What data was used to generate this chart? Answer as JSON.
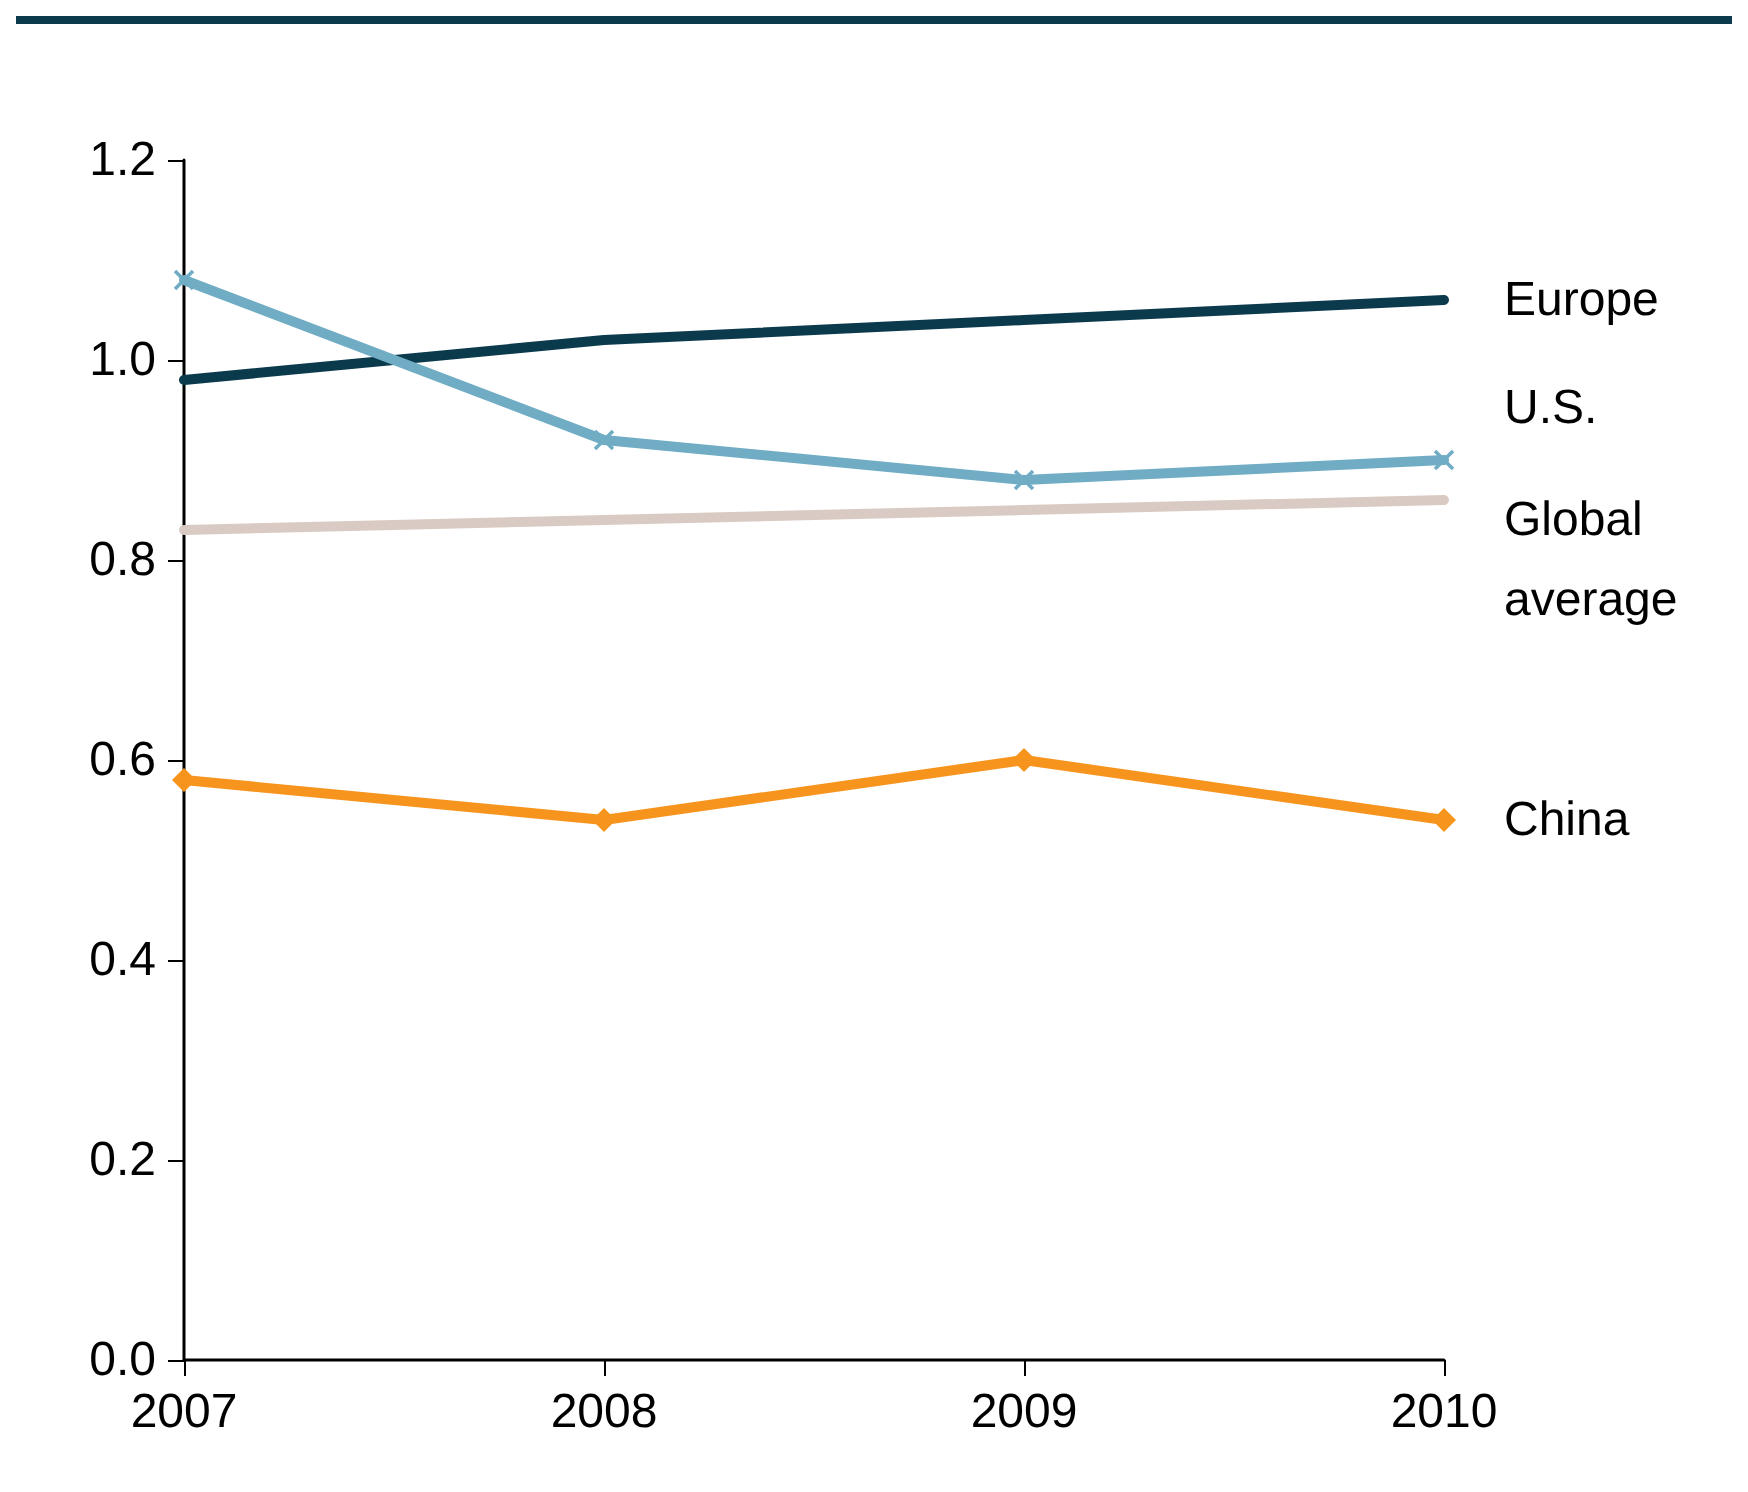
{
  "chart_data": {
    "type": "line",
    "categories": [
      "2007",
      "2008",
      "2009",
      "2010"
    ],
    "series": [
      {
        "name": "Europe",
        "color": "#0b3a4c",
        "values": [
          0.98,
          1.02,
          1.04,
          1.06
        ],
        "marker": "none"
      },
      {
        "name": "U.S.",
        "color": "#70adc4",
        "values": [
          1.08,
          0.92,
          0.88,
          0.9
        ],
        "marker": "cross"
      },
      {
        "name": "Global average",
        "color": "#d9cbc3",
        "values": [
          0.83,
          0.84,
          0.85,
          0.86
        ],
        "marker": "none"
      },
      {
        "name": "China",
        "color": "#f7941d",
        "values": [
          0.58,
          0.54,
          0.6,
          0.54
        ],
        "marker": "diamond"
      }
    ],
    "ylim": [
      0,
      1.2
    ],
    "yticks": [
      {
        "value": 0,
        "label": "0.0"
      },
      {
        "value": 0.2,
        "label": "0.2"
      },
      {
        "value": 0.4,
        "label": "0.4"
      },
      {
        "value": 0.6,
        "label": "0.6"
      },
      {
        "value": 0.8,
        "label": "0.8"
      },
      {
        "value": 1.0,
        "label": "1.0"
      },
      {
        "value": 1.2,
        "label": "1.2"
      }
    ],
    "grid": false,
    "legend": false,
    "line_style": "solid"
  }
}
